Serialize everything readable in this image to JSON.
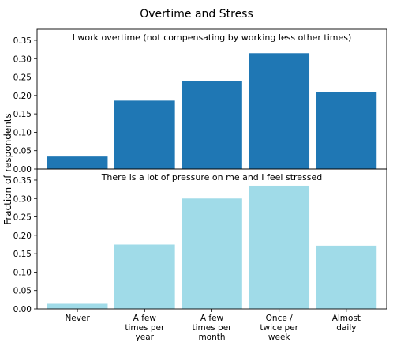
{
  "chart_data": {
    "type": "bar",
    "title": "Overtime and Stress",
    "ylabel": "Fraction of respondents",
    "categories": [
      [
        "Never"
      ],
      [
        "A few",
        "times per",
        "year"
      ],
      [
        "A few",
        "times per",
        "month"
      ],
      [
        "Once /",
        "twice per",
        "week"
      ],
      [
        "Almost",
        "daily"
      ]
    ],
    "yticks": [
      "0.00",
      "0.05",
      "0.10",
      "0.15",
      "0.20",
      "0.25",
      "0.30",
      "0.35"
    ],
    "ylim": [
      0,
      0.38
    ],
    "panels": [
      {
        "title": "I work overtime (not compensating by working less other times)",
        "color": "#1f77b4",
        "values": [
          0.034,
          0.186,
          0.24,
          0.315,
          0.21
        ]
      },
      {
        "title": "There is a lot of pressure on me and I feel stressed",
        "color": "#a0dbe8",
        "values": [
          0.014,
          0.175,
          0.3,
          0.335,
          0.172
        ]
      }
    ]
  }
}
